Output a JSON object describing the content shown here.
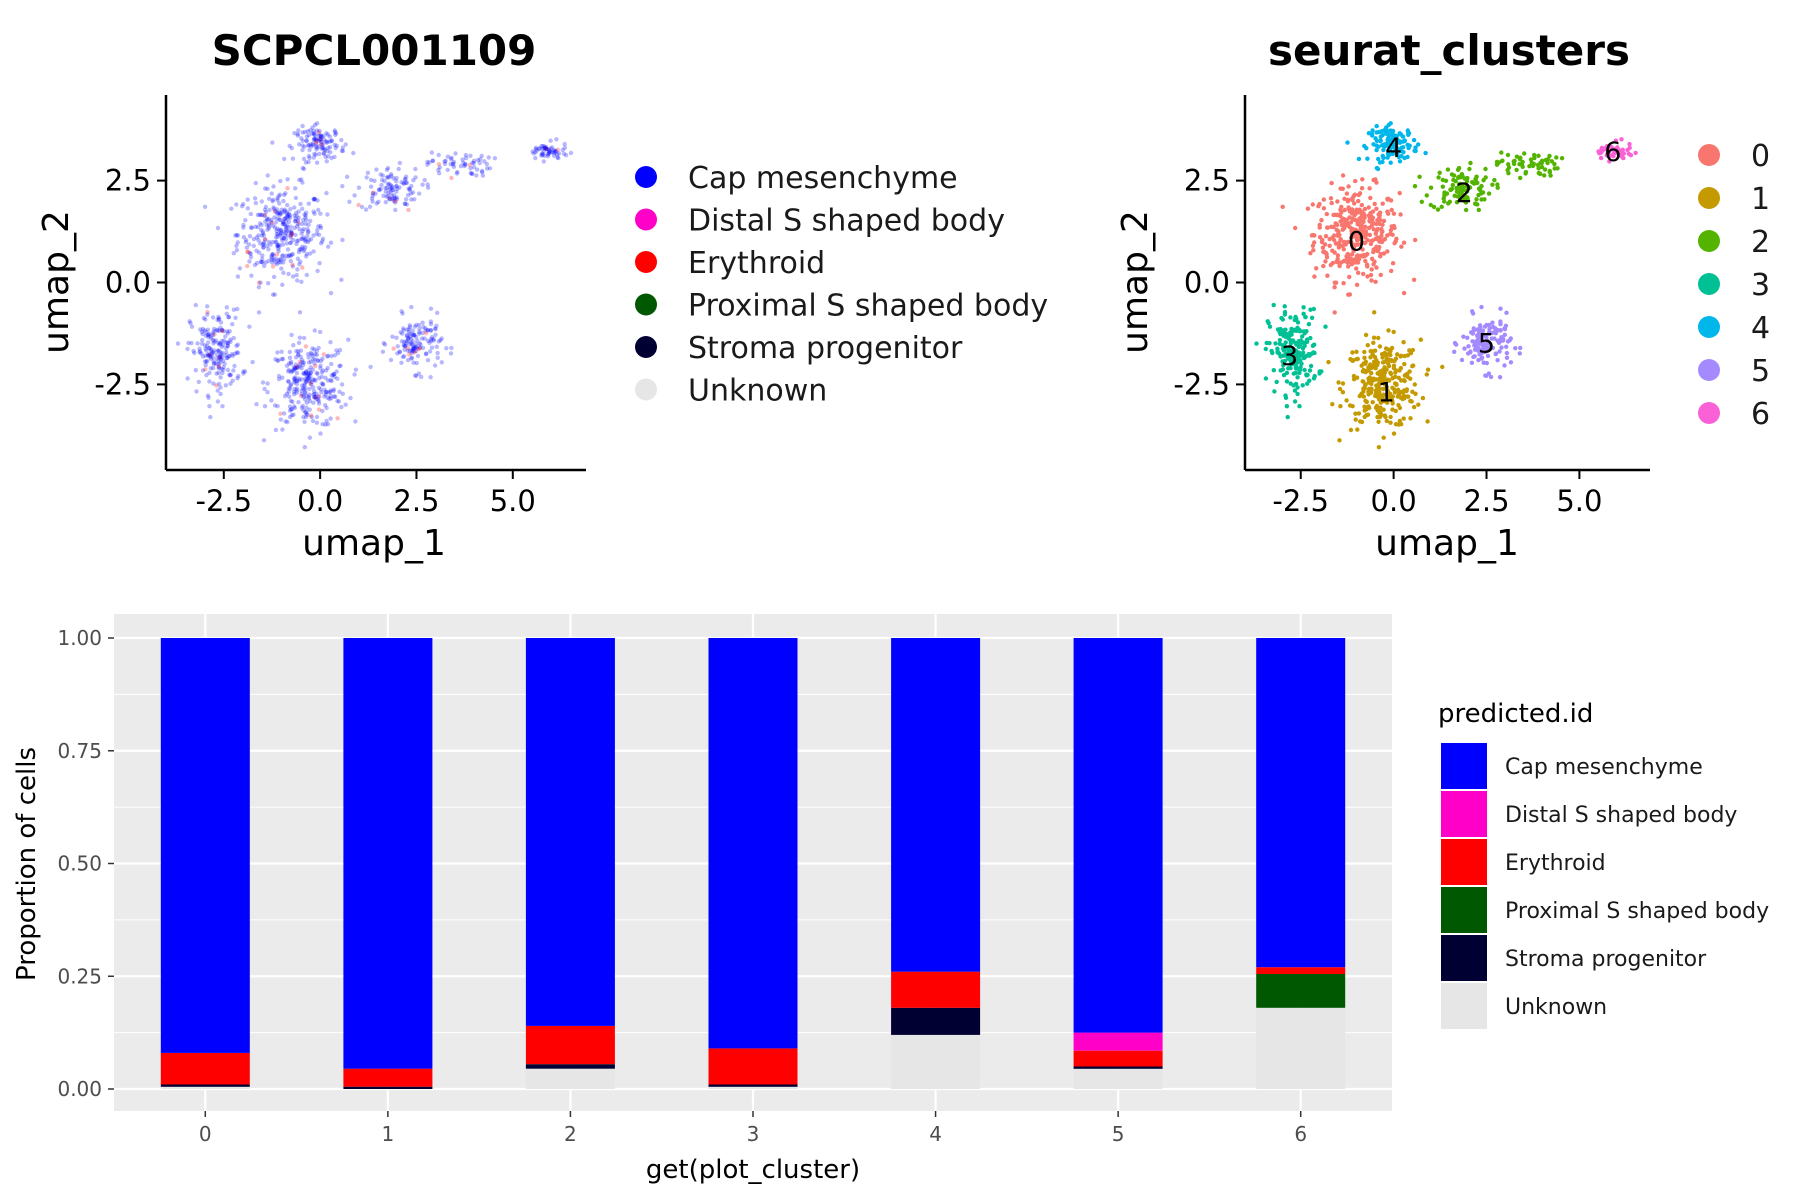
{
  "chart_data": [
    {
      "type": "scatter",
      "title": "SCPCL001109",
      "xlabel": "umap_1",
      "ylabel": "umap_2",
      "x_ticks": [
        "-2.5",
        "0.0",
        "2.5",
        "5.0"
      ],
      "y_ticks": [
        "2.5",
        "0.0",
        "-2.5"
      ],
      "x_tick_values": [
        -2.5,
        0,
        2.5,
        5
      ],
      "y_tick_values": [
        2.5,
        0,
        -2.5
      ],
      "xlim": [
        -4.0,
        6.9
      ],
      "ylim": [
        -4.6,
        4.6
      ],
      "legend_position": "right",
      "legend": [
        {
          "label": "Cap mesenchyme",
          "color": "#0000ff"
        },
        {
          "label": "Distal S shaped body",
          "color": "#ff00c8"
        },
        {
          "label": "Erythroid",
          "color": "#ff0000"
        },
        {
          "label": "Proximal S shaped body",
          "color": "#005900"
        },
        {
          "label": "Stroma progenitor",
          "color": "#000033"
        },
        {
          "label": "Unknown",
          "color": "#e6e6e6"
        }
      ]
    },
    {
      "type": "scatter",
      "title": "seurat_clusters",
      "xlabel": "umap_1",
      "ylabel": "umap_2",
      "x_ticks": [
        "-2.5",
        "0.0",
        "2.5",
        "5.0"
      ],
      "y_ticks": [
        "2.5",
        "0.0",
        "-2.5"
      ],
      "x_tick_values": [
        -2.5,
        0,
        2.5,
        5
      ],
      "y_tick_values": [
        2.5,
        0,
        -2.5
      ],
      "xlim": [
        -4.0,
        6.9
      ],
      "ylim": [
        -4.6,
        4.6
      ],
      "legend_position": "right",
      "legend": [
        {
          "label": "0",
          "color": "#f8766d"
        },
        {
          "label": "1",
          "color": "#c49a00"
        },
        {
          "label": "2",
          "color": "#53b400"
        },
        {
          "label": "3",
          "color": "#00c094"
        },
        {
          "label": "4",
          "color": "#00b6eb"
        },
        {
          "label": "5",
          "color": "#a58aff"
        },
        {
          "label": "6",
          "color": "#fb61d7"
        }
      ],
      "cluster_labels": [
        {
          "label": "0",
          "x": -1.0,
          "y": 1.0
        },
        {
          "label": "1",
          "x": -0.2,
          "y": -2.7
        },
        {
          "label": "2",
          "x": 1.9,
          "y": 2.2
        },
        {
          "label": "3",
          "x": -2.8,
          "y": -1.8
        },
        {
          "label": "4",
          "x": 0.0,
          "y": 3.3
        },
        {
          "label": "5",
          "x": 2.5,
          "y": -1.5
        },
        {
          "label": "6",
          "x": 5.9,
          "y": 3.2
        }
      ]
    },
    {
      "type": "bar",
      "stacked": true,
      "xlabel": "get(plot_cluster)",
      "ylabel": "Proportion of cells",
      "categories": [
        "0",
        "1",
        "2",
        "3",
        "4",
        "5",
        "6"
      ],
      "y_ticks": [
        "1.00",
        "0.75",
        "0.50",
        "0.25",
        "0.00"
      ],
      "y_tick_values": [
        1,
        0.75,
        0.5,
        0.25,
        0
      ],
      "ylim": [
        0,
        1
      ],
      "grid": true,
      "legend_title": "predicted.id",
      "legend_position": "right",
      "series": [
        {
          "name": "Unknown",
          "color": "#e6e6e6",
          "values": [
            0.005,
            0.0,
            0.045,
            0.005,
            0.12,
            0.045,
            0.18
          ]
        },
        {
          "name": "Stroma progenitor",
          "color": "#000033",
          "values": [
            0.005,
            0.005,
            0.01,
            0.005,
            0.06,
            0.005,
            0.0
          ]
        },
        {
          "name": "Proximal S shaped body",
          "color": "#005900",
          "values": [
            0.0,
            0.0,
            0.0,
            0.0,
            0.0,
            0.0,
            0.075
          ]
        },
        {
          "name": "Erythroid",
          "color": "#ff0000",
          "values": [
            0.07,
            0.04,
            0.085,
            0.08,
            0.08,
            0.035,
            0.015
          ]
        },
        {
          "name": "Distal S shaped body",
          "color": "#ff00c8",
          "values": [
            0.0,
            0.0,
            0.0,
            0.0,
            0.0,
            0.04,
            0.0
          ]
        },
        {
          "name": "Cap mesenchyme",
          "color": "#0000ff",
          "values": [
            0.92,
            0.955,
            0.86,
            0.91,
            0.74,
            0.875,
            0.73
          ]
        }
      ],
      "legend_order": [
        "Cap mesenchyme",
        "Distal S shaped body",
        "Erythroid",
        "Proximal S shaped body",
        "Stroma progenitor",
        "Unknown"
      ]
    }
  ]
}
